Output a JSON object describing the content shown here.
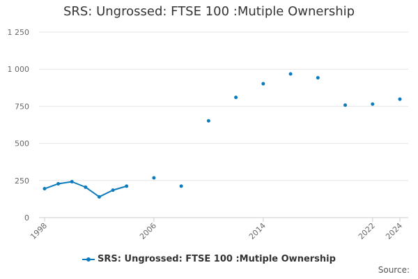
{
  "chart_data": {
    "type": "line",
    "title": "SRS: Ungrossed: FTSE 100 :Mutiple Ownership",
    "xlabel": "",
    "ylabel": "",
    "xlim": [
      1998,
      2024
    ],
    "ylim": [
      0,
      1250
    ],
    "y_ticks": [
      0,
      250,
      500,
      750,
      1000,
      1250
    ],
    "y_tick_labels": [
      "0",
      "250",
      "500",
      "750",
      "1 000",
      "1 250"
    ],
    "x_ticks": [
      1998,
      2006,
      2014,
      2022,
      2024
    ],
    "x_tick_labels": [
      "1998",
      "2006",
      "2014",
      "2022",
      "2024"
    ],
    "grid": true,
    "legend_position": "bottom",
    "color": "#0c7bbe",
    "series": [
      {
        "name": "SRS: Ungrossed: FTSE 100 :Mutiple Ownership",
        "points": [
          {
            "x": 1998,
            "y": 195
          },
          {
            "x": 1999,
            "y": 228
          },
          {
            "x": 2000,
            "y": 242
          },
          {
            "x": 2001,
            "y": 205
          },
          {
            "x": 2002,
            "y": 140
          },
          {
            "x": 2003,
            "y": 185
          },
          {
            "x": 2004,
            "y": 212
          },
          {
            "x": 2006,
            "y": 268
          },
          {
            "x": 2008,
            "y": 212
          },
          {
            "x": 2010,
            "y": 652
          },
          {
            "x": 2012,
            "y": 810
          },
          {
            "x": 2014,
            "y": 902
          },
          {
            "x": 2016,
            "y": 968
          },
          {
            "x": 2018,
            "y": 942
          },
          {
            "x": 2020,
            "y": 758
          },
          {
            "x": 2022,
            "y": 765
          },
          {
            "x": 2024,
            "y": 798
          }
        ]
      }
    ]
  },
  "legend": {
    "label": "SRS: Ungrossed: FTSE 100 :Mutiple Ownership"
  },
  "source": {
    "label": "Source:"
  }
}
